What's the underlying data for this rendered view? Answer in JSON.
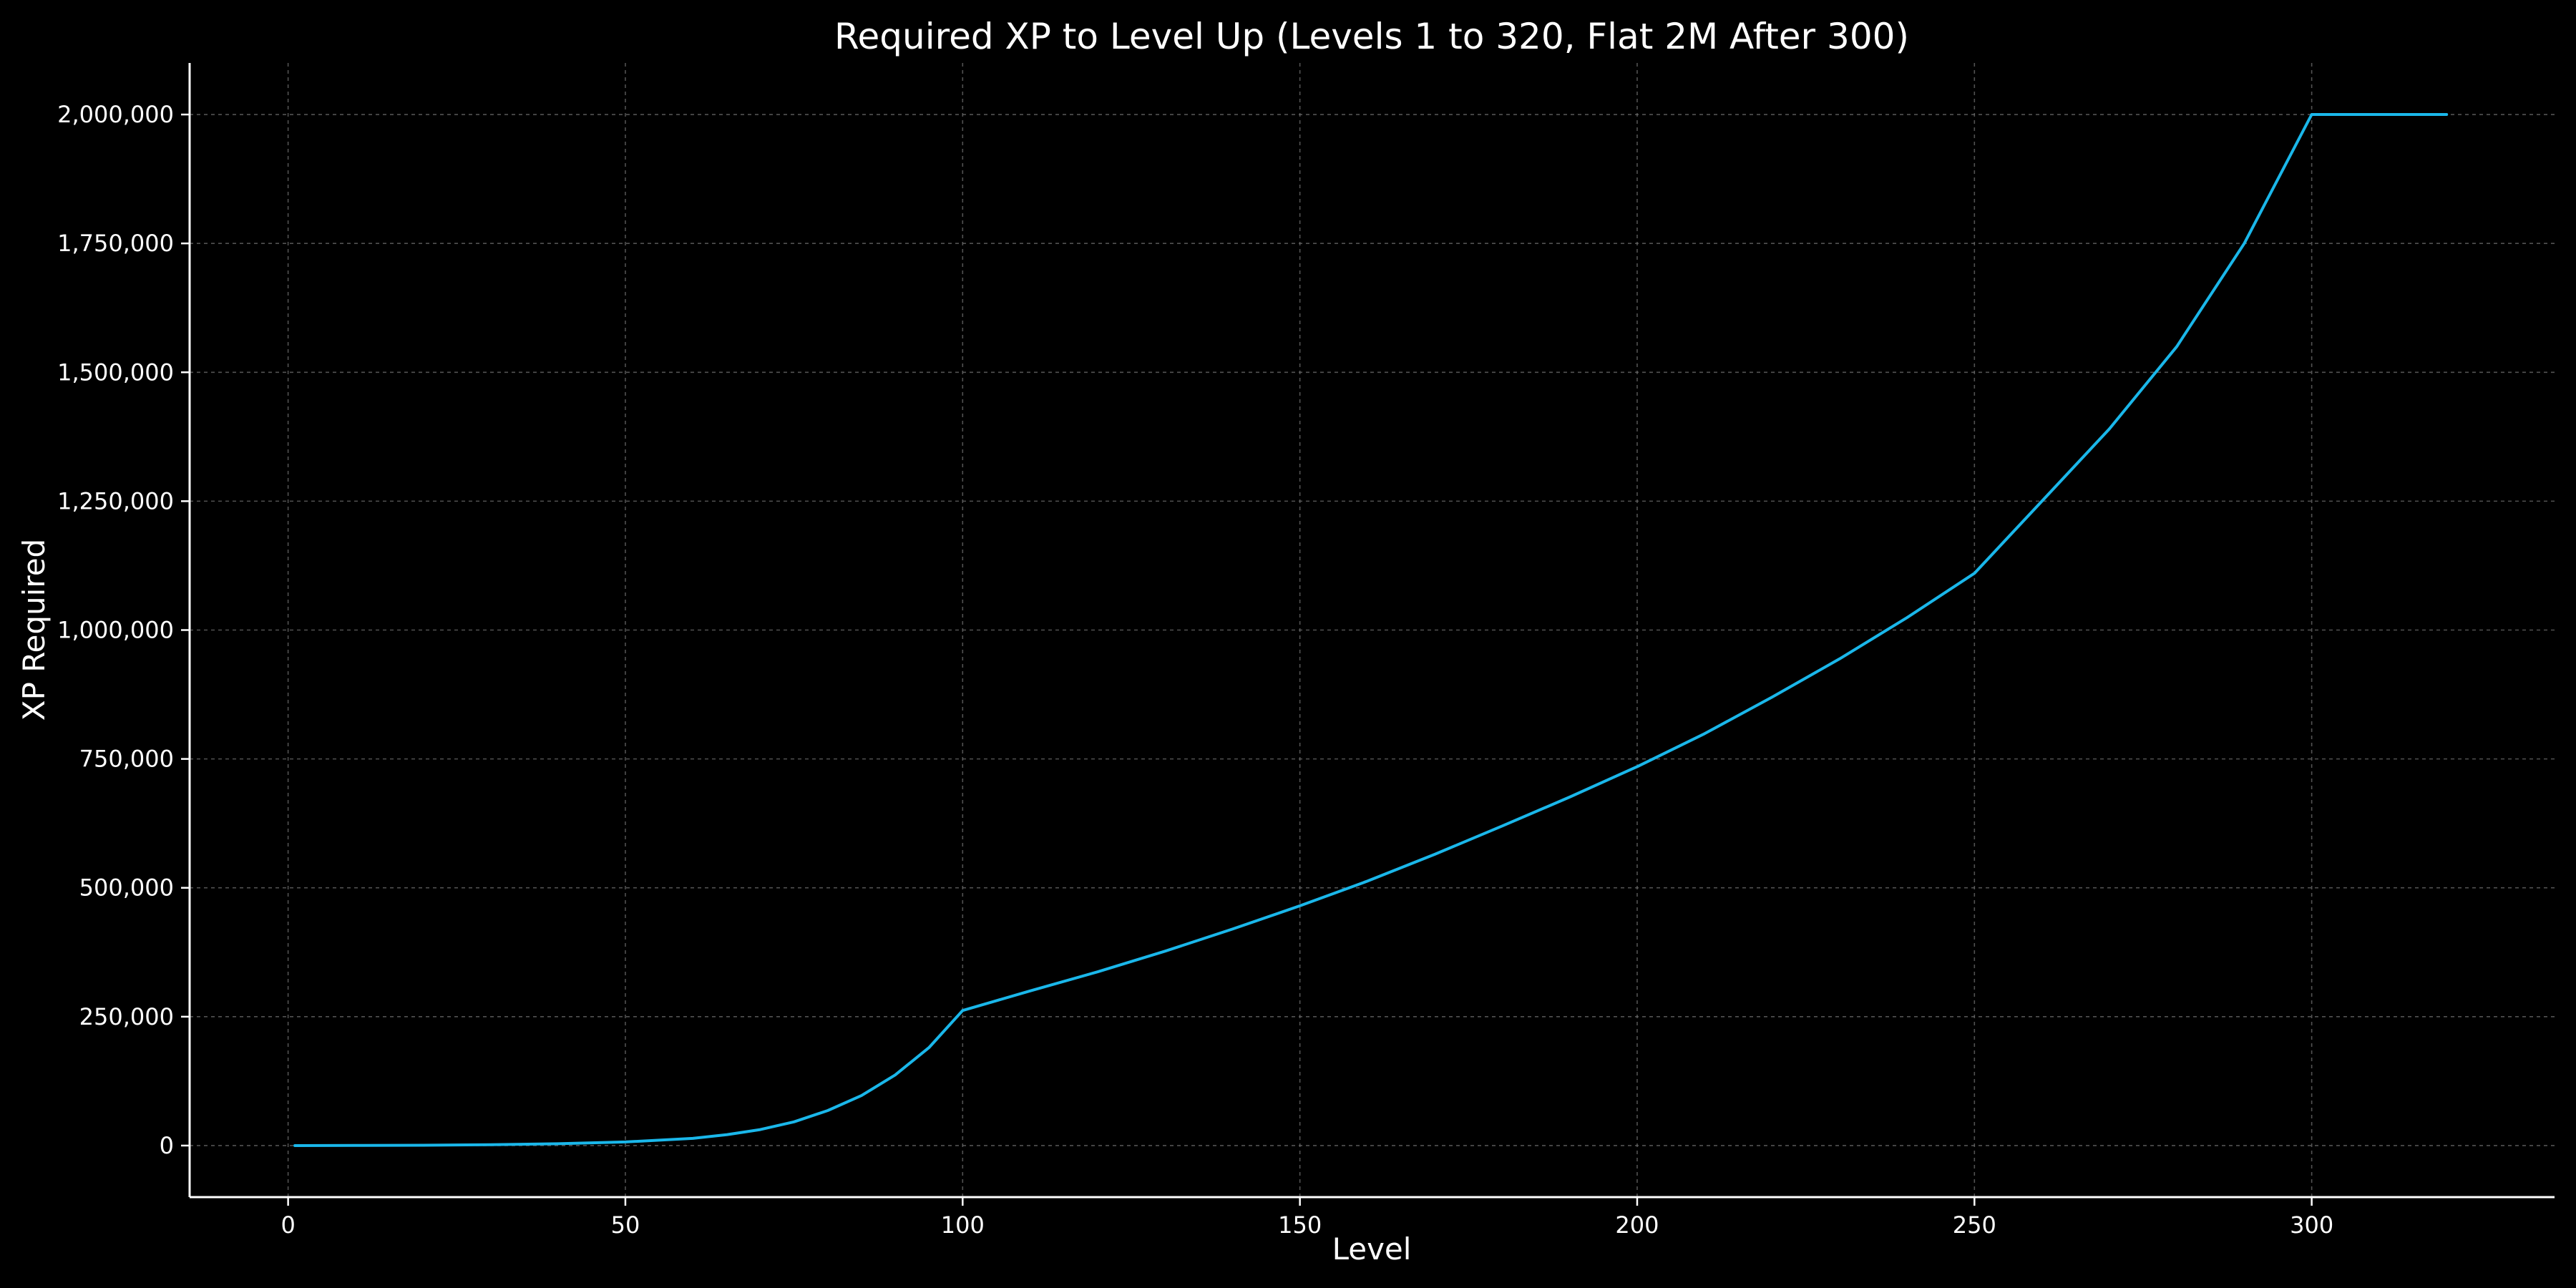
{
  "chart_data": {
    "type": "line",
    "title": "Required XP to Level Up (Levels 1 to 320, Flat 2M After 300)",
    "xlabel": "Level",
    "ylabel": "XP Required",
    "xlim": [
      -14.6,
      336
    ],
    "ylim": [
      -100000,
      2100000
    ],
    "xticks": [
      0,
      50,
      100,
      150,
      200,
      250,
      300
    ],
    "xtick_labels": [
      "0",
      "50",
      "100",
      "150",
      "200",
      "250",
      "300"
    ],
    "yticks": [
      0,
      250000,
      500000,
      750000,
      1000000,
      1250000,
      1500000,
      1750000,
      2000000
    ],
    "ytick_labels": [
      "0",
      "250,000",
      "500,000",
      "750,000",
      "1,000,000",
      "1,250,000",
      "1,500,000",
      "1,750,000",
      "2,000,000"
    ],
    "grid": true,
    "colors": {
      "background": "#000000",
      "line": "#1ab7ea",
      "text": "#ffffff",
      "grid": "#6e6e6e"
    },
    "series": [
      {
        "name": "",
        "x": [
          1,
          10,
          20,
          30,
          40,
          50,
          60,
          65,
          70,
          75,
          80,
          85,
          90,
          95,
          100,
          110,
          120,
          130,
          140,
          150,
          160,
          170,
          180,
          190,
          200,
          210,
          220,
          230,
          240,
          250,
          260,
          270,
          280,
          290,
          300,
          305,
          310,
          315,
          320
        ],
        "y": [
          0,
          200,
          700,
          1700,
          3500,
          7000,
          14000,
          21000,
          31000,
          46000,
          68000,
          97000,
          137000,
          190000,
          262000,
          300000,
          337000,
          377000,
          420000,
          465000,
          513000,
          565000,
          620000,
          676000,
          735000,
          799000,
          870000,
          944000,
          1024000,
          1110000,
          1250000,
          1390000,
          1550000,
          1750000,
          2000000,
          2000000,
          2000000,
          2000000,
          2000000
        ]
      }
    ]
  }
}
